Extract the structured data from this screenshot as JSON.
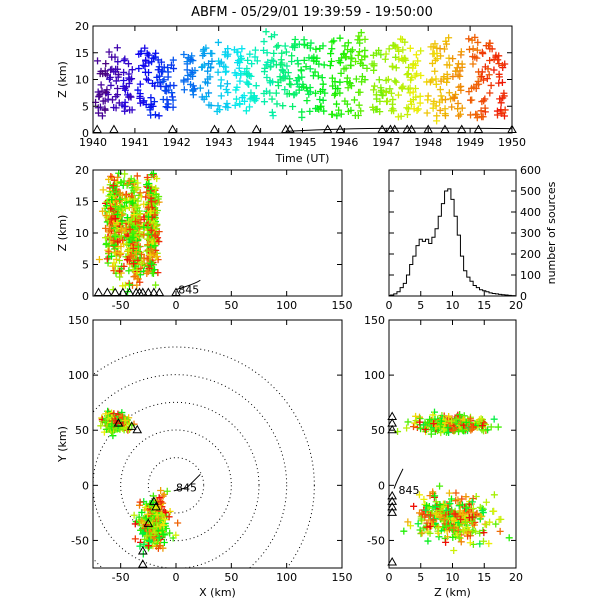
{
  "title": "ABFM - 05/29/01 19:39:59 - 19:50:00",
  "chart_data": [
    {
      "type": "scatter",
      "panel": "time-height",
      "xlabel": "Time (UT)",
      "ylabel": "Z (km)",
      "xlim": [
        1940,
        1950
      ],
      "ylim": [
        0,
        20
      ],
      "xticks": [
        "1940",
        "1941",
        "1942",
        "1943",
        "1944",
        "1945",
        "1946",
        "1947",
        "1948",
        "1949",
        "1950"
      ],
      "yticks": [
        "0",
        "5",
        "10",
        "15",
        "20"
      ],
      "color_by": "time",
      "columns": [
        {
          "t": 1940.2,
          "zmin": 2,
          "zmax": 15
        },
        {
          "t": 1940.5,
          "zmin": 3,
          "zmax": 16
        },
        {
          "t": 1940.8,
          "zmin": 4,
          "zmax": 14
        },
        {
          "t": 1941.2,
          "zmin": 5,
          "zmax": 17
        },
        {
          "t": 1941.5,
          "zmin": 3,
          "zmax": 16
        },
        {
          "t": 1941.8,
          "zmin": 4,
          "zmax": 14
        },
        {
          "t": 1942.3,
          "zmin": 7,
          "zmax": 15
        },
        {
          "t": 1942.7,
          "zmin": 5,
          "zmax": 16
        },
        {
          "t": 1943.1,
          "zmin": 4,
          "zmax": 18
        },
        {
          "t": 1943.5,
          "zmin": 5,
          "zmax": 17
        },
        {
          "t": 1943.8,
          "zmin": 4,
          "zmax": 16
        },
        {
          "t": 1944.2,
          "zmin": 3,
          "zmax": 19
        },
        {
          "t": 1944.5,
          "zmin": 5,
          "zmax": 17
        },
        {
          "t": 1944.8,
          "zmin": 4,
          "zmax": 18
        },
        {
          "t": 1945.1,
          "zmin": 2,
          "zmax": 18
        },
        {
          "t": 1945.4,
          "zmin": 4,
          "zmax": 17
        },
        {
          "t": 1945.8,
          "zmin": 3,
          "zmax": 18
        },
        {
          "t": 1946.1,
          "zmin": 4,
          "zmax": 17
        },
        {
          "t": 1946.4,
          "zmin": 3,
          "zmax": 19
        },
        {
          "t": 1946.8,
          "zmin": 3,
          "zmax": 16
        },
        {
          "t": 1947.1,
          "zmin": 4,
          "zmax": 17
        },
        {
          "t": 1947.4,
          "zmin": 3,
          "zmax": 18
        },
        {
          "t": 1947.7,
          "zmin": 4,
          "zmax": 16
        },
        {
          "t": 1948.1,
          "zmin": 2,
          "zmax": 17
        },
        {
          "t": 1948.4,
          "zmin": 3,
          "zmax": 18
        },
        {
          "t": 1948.7,
          "zmin": 3,
          "zmax": 17
        },
        {
          "t": 1949.1,
          "zmin": 2,
          "zmax": 18
        },
        {
          "t": 1949.4,
          "zmin": 3,
          "zmax": 17
        },
        {
          "t": 1949.7,
          "zmin": 3,
          "zmax": 15
        }
      ],
      "ground_markers_t": [
        1940.1,
        1940.5,
        1941.9,
        1942.9,
        1943.3,
        1943.9,
        1944.6,
        1944.7,
        1945.6,
        1945.9,
        1946.9,
        1947.1,
        1947.2,
        1947.5,
        1947.6,
        1948.0,
        1948.4,
        1948.8,
        1949.2,
        1950.0
      ]
    },
    {
      "type": "scatter",
      "panel": "x-height",
      "xlabel": "",
      "ylabel": "Z (km)",
      "xlim": [
        -75,
        150
      ],
      "ylim": [
        0,
        20
      ],
      "xticks": [
        "-50",
        "0",
        "50",
        "100",
        "150"
      ],
      "yticks": [
        "0",
        "5",
        "10",
        "15",
        "20"
      ],
      "clusters": [
        {
          "x": -55,
          "z": 12,
          "sx": 8,
          "sz": 5
        },
        {
          "x": -38,
          "z": 10,
          "sx": 6,
          "sz": 6
        },
        {
          "x": -22,
          "z": 11,
          "sx": 5,
          "sz": 5
        }
      ],
      "annotation": "845",
      "ground_markers_x": [
        -70,
        -62,
        -55,
        -48,
        -42,
        -36,
        -33,
        -30,
        -25,
        -20,
        -15,
        0
      ]
    },
    {
      "type": "bar",
      "panel": "height-histogram",
      "ylabel": "number of sources",
      "xlim": [
        0,
        20
      ],
      "ylim": [
        0,
        600
      ],
      "xticks": [
        "0",
        "5",
        "10",
        "15",
        "20"
      ],
      "yticks": [
        "0",
        "100",
        "200",
        "300",
        "400",
        "500",
        "600"
      ],
      "x": [
        0.5,
        1,
        1.5,
        2,
        2.5,
        3,
        3.5,
        4,
        4.5,
        5,
        5.5,
        6,
        6.5,
        7,
        7.5,
        8,
        8.5,
        9,
        9.5,
        10,
        10.5,
        11,
        11.5,
        12,
        12.5,
        13,
        13.5,
        14,
        14.5,
        15,
        15.5,
        16,
        16.5,
        17,
        17.5,
        18,
        18.5,
        19,
        19.5
      ],
      "values": [
        5,
        10,
        20,
        40,
        60,
        100,
        150,
        190,
        240,
        270,
        260,
        270,
        250,
        280,
        320,
        380,
        440,
        500,
        510,
        460,
        380,
        290,
        190,
        120,
        90,
        70,
        50,
        40,
        30,
        25,
        20,
        15,
        12,
        10,
        8,
        6,
        5,
        3,
        2
      ]
    },
    {
      "type": "scatter",
      "panel": "plan-view",
      "xlabel": "X (km)",
      "ylabel": "Y (km)",
      "xlim": [
        -75,
        150
      ],
      "ylim": [
        -75,
        150
      ],
      "xticks": [
        "-50",
        "0",
        "50",
        "100",
        "150"
      ],
      "yticks": [
        "-50",
        "0",
        "50",
        "100",
        "150"
      ],
      "range_rings_km": [
        25,
        50,
        75,
        100,
        125
      ],
      "clusters": [
        {
          "x": -55,
          "y": 57,
          "sx": 10,
          "sy": 6
        },
        {
          "x": -20,
          "y": -35,
          "sx": 10,
          "sy": 17
        }
      ],
      "annotation": "845"
    },
    {
      "type": "scatter",
      "panel": "z-y",
      "xlabel": "Z (km)",
      "ylabel": "",
      "xlim": [
        0,
        20
      ],
      "ylim": [
        -75,
        150
      ],
      "xticks": [
        "0",
        "5",
        "10",
        "15",
        "20"
      ],
      "yticks": [
        "-50",
        "0",
        "50",
        "100",
        "150"
      ],
      "clusters": [
        {
          "z": 10,
          "y": 55,
          "sz": 4,
          "sy": 6
        },
        {
          "z": 10,
          "y": -30,
          "sz": 4,
          "sy": 17
        }
      ],
      "annotation": "845"
    }
  ]
}
